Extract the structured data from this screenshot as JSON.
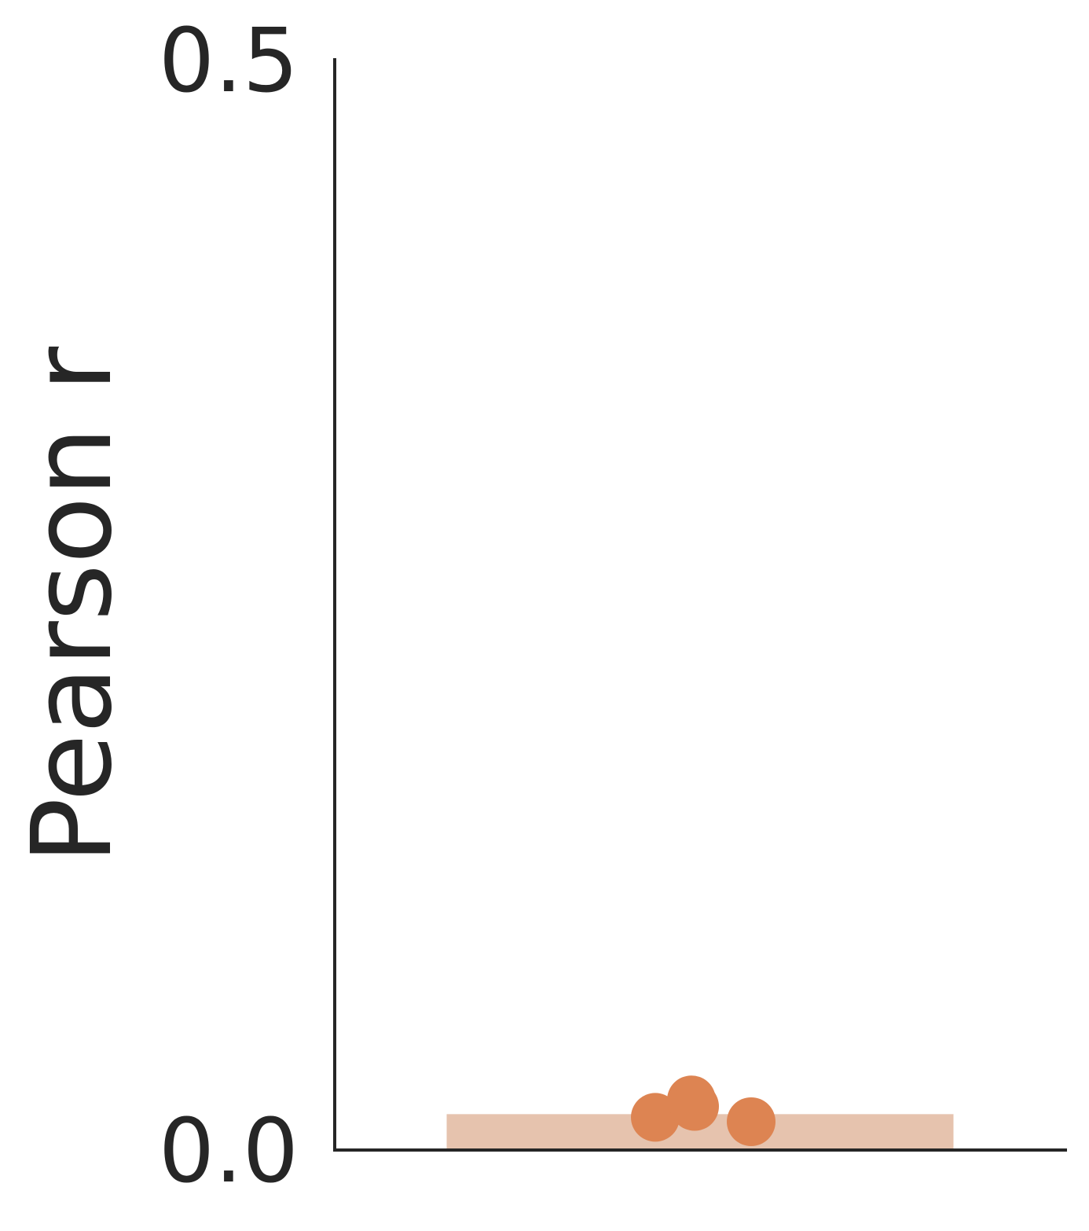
{
  "chart_data": {
    "type": "bar",
    "title": "",
    "xlabel": "",
    "ylabel": "Pearson r",
    "ylim": [
      0,
      0.5
    ],
    "yticks": [
      {
        "value": 0.0,
        "label": "0.0"
      },
      {
        "value": 0.5,
        "label": "0.5"
      }
    ],
    "grid": false,
    "categories": [
      ""
    ],
    "bar": {
      "value": 0.017,
      "color": "#e6c3ae"
    },
    "points": {
      "color": "#dd8452",
      "values": [
        0.015,
        0.023,
        0.013,
        0.02
      ]
    }
  }
}
